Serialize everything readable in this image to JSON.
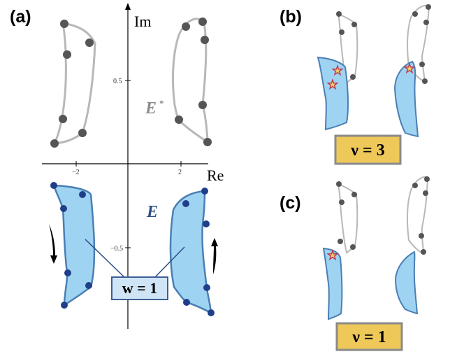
{
  "panels": {
    "a": {
      "label": "(a)"
    },
    "b": {
      "label": "(b)",
      "badge": "ν = 3"
    },
    "c": {
      "label": "(c)",
      "badge": "ν = 1"
    }
  },
  "axes": {
    "x_title": "Re",
    "y_title": "Im",
    "x_ticks": [
      "−2",
      "2"
    ],
    "y_ticks": [
      "0.5",
      "−0.5"
    ]
  },
  "labels": {
    "e_conjugate": "E",
    "e_conjugate_sup": "*",
    "e": "E",
    "winding": "w = 1"
  },
  "colors": {
    "blue_fill": "#9fd3f2",
    "blue_stroke": "#4a7fb4",
    "dark_blue_point": "#1f3f8a",
    "gray_curve": "#b8b8b8",
    "gray_point": "#555555",
    "badge_fill": "#eec95a",
    "badge_stroke": "#8a8a8a",
    "star_fill": "#f2c866",
    "star_stroke": "#c0334a"
  }
}
